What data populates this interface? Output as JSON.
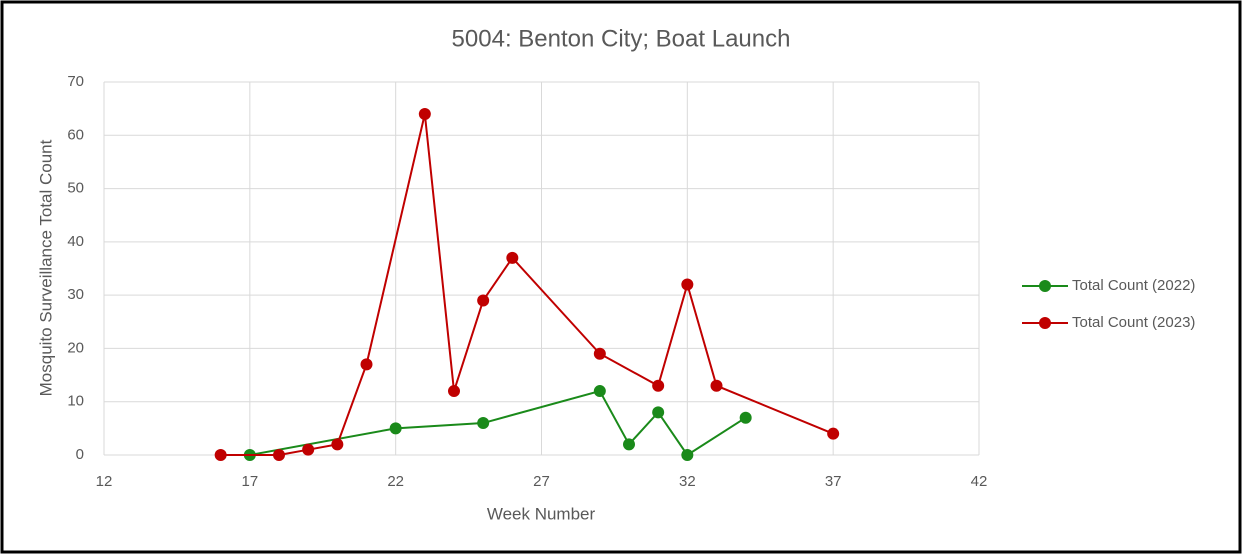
{
  "chart_data": {
    "type": "line",
    "title": "5004:  Benton City; Boat Launch",
    "x_label": "Week Number",
    "y_label": "Mosquito Surveillance Total Count",
    "xlim": [
      12,
      42
    ],
    "xticks": [
      12,
      17,
      22,
      27,
      32,
      37,
      42
    ],
    "ylim": [
      0,
      70
    ],
    "yticks": [
      0,
      10,
      20,
      30,
      40,
      50,
      60,
      70
    ],
    "grid": true,
    "legend": "right",
    "series": [
      {
        "name": "Total Count (2022)",
        "color": "#1a8a1a",
        "x": [
          17,
          22,
          25,
          29,
          30,
          31,
          32,
          34
        ],
        "values": [
          0,
          5,
          6,
          12,
          2,
          8,
          0,
          7
        ]
      },
      {
        "name": "Total Count (2023)",
        "color": "#c00000",
        "x": [
          16,
          18,
          19,
          20,
          21,
          23,
          24,
          25,
          26,
          29,
          31,
          32,
          33,
          37
        ],
        "values": [
          0,
          0,
          1,
          2,
          17,
          64,
          12,
          29,
          37,
          19,
          13,
          32,
          13,
          4
        ]
      }
    ]
  }
}
